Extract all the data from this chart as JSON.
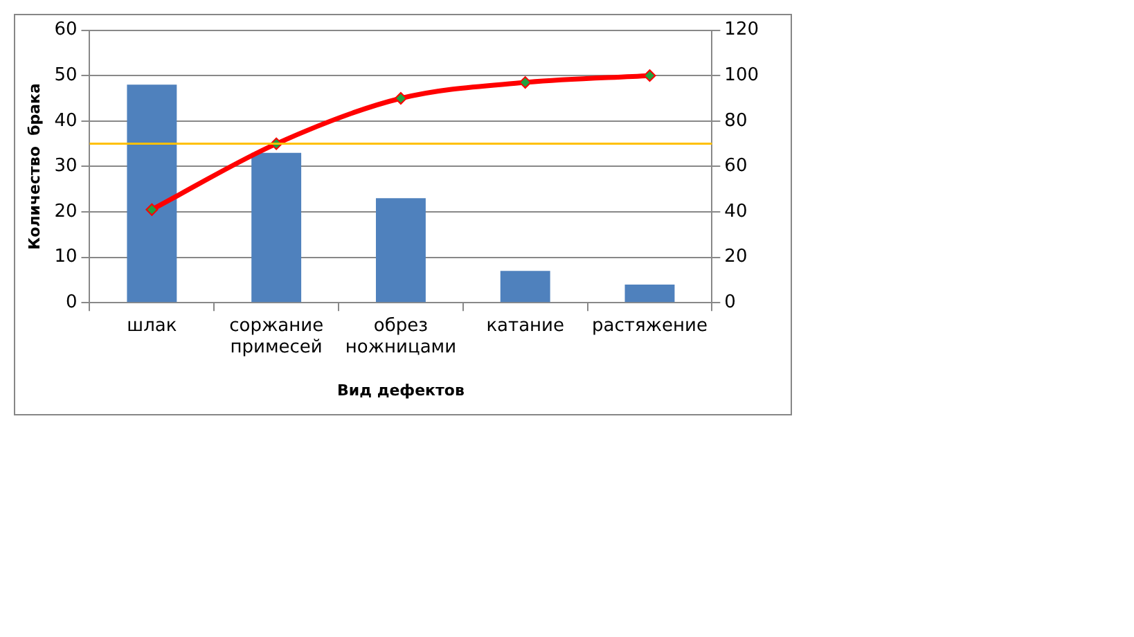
{
  "chart_data": {
    "type": "bar",
    "xlabel": "Вид дефектов",
    "ylabel": "Количество  брака",
    "categories": [
      "шлак",
      "соржание примесей",
      "обрез ножницами",
      "катание",
      "растяжение"
    ],
    "series": [
      {
        "color": "#4f81bd",
        "values": [
          48,
          33,
          23,
          7,
          4
        ]
      },
      {
        "type": "line",
        "axis": "y2",
        "color": "#ff0000",
        "colors": [
          "#22a040",
          "#22a040",
          "#22a040",
          "#22a040",
          "#22a040"
        ],
        "marker": "diamond",
        "values": [
          41,
          70,
          90,
          97,
          100
        ]
      }
    ],
    "ylim": [
      0,
      60
    ],
    "yticks": [
      0,
      10,
      20,
      30,
      40,
      50,
      60
    ],
    "y2lim": [
      0,
      120
    ],
    "y2ticks": [
      0,
      20,
      40,
      60,
      80,
      100,
      120
    ],
    "ref_lines": [
      {
        "axis": "y2",
        "value": 70,
        "color": "#ffc000"
      }
    ],
    "grid": "y",
    "legend": false
  }
}
